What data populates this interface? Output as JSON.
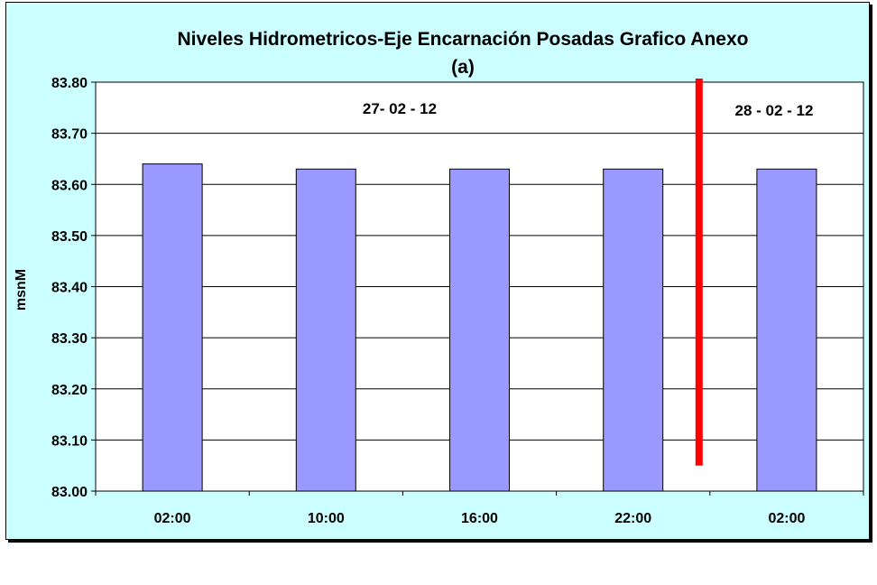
{
  "chart_data": {
    "type": "bar",
    "title": "Niveles Hidrometricos-Eje Encarnación Posadas Grafico Anexo",
    "subtitle": "(a)",
    "ylabel": "msnM",
    "xlabel": "",
    "categories": [
      "02:00",
      "10:00",
      "16:00",
      "22:00",
      "02:00"
    ],
    "values": [
      83.64,
      83.63,
      83.63,
      83.63,
      83.63
    ],
    "ylim": [
      83.0,
      83.8
    ],
    "yticks": [
      "83.00",
      "83.10",
      "83.20",
      "83.30",
      "83.40",
      "83.50",
      "83.60",
      "83.70",
      "83.80"
    ],
    "grid": true,
    "legend": "none",
    "annotations": [
      "27- 02 - 12",
      "28 - 02 - 12"
    ],
    "separator": {
      "between_categories": [
        3,
        4
      ],
      "from": 83.8,
      "to": 83.05
    },
    "colors": {
      "bar": "#9999ff",
      "background": "#ccffff",
      "separator": "#ff0000"
    }
  }
}
